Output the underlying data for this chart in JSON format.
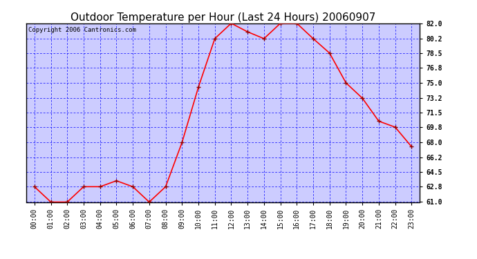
{
  "title": "Outdoor Temperature per Hour (Last 24 Hours) 20060907",
  "copyright_text": "Copyright 2006 Cantronics.com",
  "hours": [
    "00:00",
    "01:00",
    "02:00",
    "03:00",
    "04:00",
    "05:00",
    "06:00",
    "07:00",
    "08:00",
    "09:00",
    "10:00",
    "11:00",
    "12:00",
    "13:00",
    "14:00",
    "15:00",
    "16:00",
    "17:00",
    "18:00",
    "19:00",
    "20:00",
    "21:00",
    "22:00",
    "23:00"
  ],
  "temps": [
    62.8,
    61.0,
    61.0,
    62.8,
    62.8,
    63.5,
    62.8,
    61.0,
    62.8,
    68.0,
    74.5,
    80.2,
    82.0,
    81.0,
    80.2,
    82.0,
    82.0,
    80.2,
    78.5,
    75.0,
    73.2,
    70.5,
    69.8,
    67.5
  ],
  "ylim_min": 61.0,
  "ylim_max": 82.0,
  "yticks": [
    61.0,
    62.8,
    64.5,
    66.2,
    68.0,
    69.8,
    71.5,
    73.2,
    75.0,
    76.8,
    78.5,
    80.2,
    82.0
  ],
  "line_color": "red",
  "marker_color": "darkred",
  "grid_color": "blue",
  "background_color": "#ffffff",
  "plot_bg_color": "#ccccff",
  "title_fontsize": 11,
  "copyright_fontsize": 6.5,
  "tick_fontsize": 7
}
